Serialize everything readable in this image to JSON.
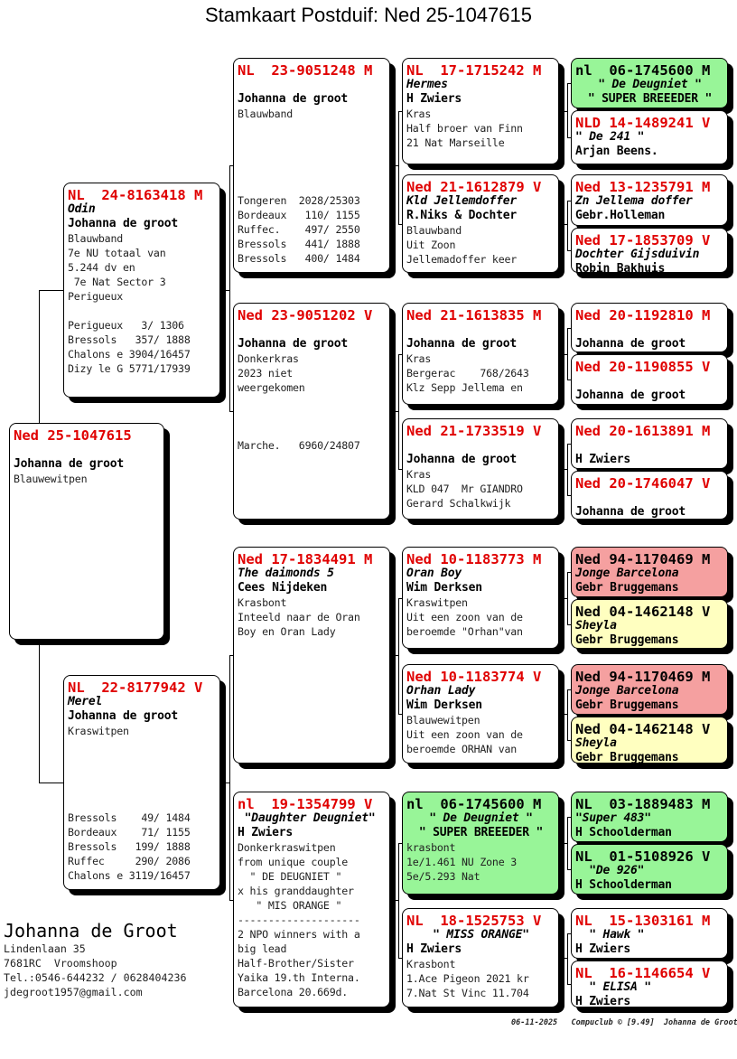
{
  "title": "Stamkaart Postduif: Ned 25-1047615",
  "colors": {
    "ring": "#e00000",
    "green": "#98f598",
    "red": "#f5a0a0",
    "yellow": "#ffffc0"
  },
  "cards": [
    {
      "lines": [
        {
          "s": "r",
          "t": "Ned 25-1047615"
        },
        {
          "s": "b",
          "t": ""
        },
        {
          "s": "o",
          "t": "Johanna de groot"
        },
        {
          "s": "t",
          "t": "Blauwewitpen"
        }
      ]
    },
    {
      "lines": [
        {
          "s": "r",
          "t": "NL  24-8163418 M"
        },
        {
          "s": "n",
          "t": "Odin"
        },
        {
          "s": "o",
          "t": "Johanna de groot"
        },
        {
          "s": "t",
          "t": "Blauwband"
        },
        {
          "s": "t",
          "t": "7e NU totaal van"
        },
        {
          "s": "t",
          "t": "5.244 dv en"
        },
        {
          "s": "t",
          "t": " 7e Nat Sector 3"
        },
        {
          "s": "t",
          "t": "Perigueux"
        },
        {
          "s": "b",
          "t": ""
        },
        {
          "s": "t",
          "t": "Perigueux   3/ 1306"
        },
        {
          "s": "t",
          "t": "Bressols   357/ 1888"
        },
        {
          "s": "t",
          "t": "Chalons e 3904/16457"
        },
        {
          "s": "t",
          "t": "Dizy le G 5771/17939"
        }
      ]
    },
    {
      "lines": [
        {
          "s": "r",
          "t": "NL  22-8177942 V"
        },
        {
          "s": "n",
          "t": "Merel"
        },
        {
          "s": "o",
          "t": "Johanna de groot"
        },
        {
          "s": "t",
          "t": "Kraswitpen"
        },
        {
          "s": "b",
          "t": ""
        },
        {
          "s": "b",
          "t": ""
        },
        {
          "s": "b",
          "t": ""
        },
        {
          "s": "b",
          "t": ""
        },
        {
          "s": "b",
          "t": ""
        },
        {
          "s": "t",
          "t": "Bressols    49/ 1484"
        },
        {
          "s": "t",
          "t": "Bordeaux    71/ 1155"
        },
        {
          "s": "t",
          "t": "Bressols   199/ 1888"
        },
        {
          "s": "t",
          "t": "Ruffec     290/ 2086"
        },
        {
          "s": "t",
          "t": "Chalons e 3119/16457"
        }
      ]
    },
    {
      "lines": [
        {
          "s": "r",
          "t": "NL  23-9051248 M"
        },
        {
          "s": "b",
          "t": ""
        },
        {
          "s": "o",
          "t": "Johanna de groot"
        },
        {
          "s": "t",
          "t": "Blauwband"
        },
        {
          "s": "b",
          "t": ""
        },
        {
          "s": "b",
          "t": ""
        },
        {
          "s": "b",
          "t": ""
        },
        {
          "s": "b",
          "t": ""
        },
        {
          "s": "b",
          "t": ""
        },
        {
          "s": "t",
          "t": "Tongeren  2028/25303"
        },
        {
          "s": "t",
          "t": "Bordeaux   110/ 1155"
        },
        {
          "s": "t",
          "t": "Ruffec.    497/ 2550"
        },
        {
          "s": "t",
          "t": "Bressols   441/ 1888"
        },
        {
          "s": "t",
          "t": "Bressols   400/ 1484"
        }
      ]
    },
    {
      "lines": [
        {
          "s": "r",
          "t": "Ned 23-9051202 V"
        },
        {
          "s": "b",
          "t": ""
        },
        {
          "s": "o",
          "t": "Johanna de groot"
        },
        {
          "s": "t",
          "t": "Donkerkras"
        },
        {
          "s": "t",
          "t": "2023 niet"
        },
        {
          "s": "t",
          "t": "weergekomen"
        },
        {
          "s": "b",
          "t": ""
        },
        {
          "s": "b",
          "t": ""
        },
        {
          "s": "b",
          "t": ""
        },
        {
          "s": "t",
          "t": "Marche.   6960/24807"
        }
      ]
    },
    {
      "lines": [
        {
          "s": "r",
          "t": "Ned 17-1834491 M"
        },
        {
          "s": "n",
          "t": "The daimonds 5"
        },
        {
          "s": "o",
          "t": "Cees Nijdeken"
        },
        {
          "s": "t",
          "t": "Krasbont"
        },
        {
          "s": "t",
          "t": "Inteeld naar de Oran"
        },
        {
          "s": "t",
          "t": "Boy en Oran Lady"
        }
      ]
    },
    {
      "lines": [
        {
          "s": "r",
          "t": "nl  19-1354799 V"
        },
        {
          "s": "n",
          "t": " \"Daughter Deugniet\""
        },
        {
          "s": "o",
          "t": "H Zwiers"
        },
        {
          "s": "t",
          "t": "Donkerkraswitpen"
        },
        {
          "s": "t",
          "t": "from unique couple"
        },
        {
          "s": "t",
          "t": "  \" DE DEUGNIET \""
        },
        {
          "s": "t",
          "t": "x his granddaughter"
        },
        {
          "s": "t",
          "t": "   \" MIS ORANGE \""
        },
        {
          "s": "t",
          "t": "--------------------"
        },
        {
          "s": "t",
          "t": "2 NPO winners with a"
        },
        {
          "s": "t",
          "t": "big lead"
        },
        {
          "s": "t",
          "t": "Half-Brother/Sister"
        },
        {
          "s": "t",
          "t": "Yaika 19.th Interna."
        },
        {
          "s": "t",
          "t": "Barcelona 20.669d."
        }
      ]
    },
    {
      "lines": [
        {
          "s": "r",
          "t": "NL  17-1715242 M"
        },
        {
          "s": "n",
          "t": "Hermes"
        },
        {
          "s": "o",
          "t": "H Zwiers"
        },
        {
          "s": "t",
          "t": "Kras"
        },
        {
          "s": "t",
          "t": "Half broer van Finn"
        },
        {
          "s": "t",
          "t": "21 Nat Marseille"
        }
      ]
    },
    {
      "lines": [
        {
          "s": "r",
          "t": "Ned 21-1612879 V"
        },
        {
          "s": "n",
          "t": "Kld Jellemdoffer"
        },
        {
          "s": "o",
          "t": "R.Niks & Dochter"
        },
        {
          "s": "t",
          "t": "Blauwband"
        },
        {
          "s": "t",
          "t": "Uit Zoon"
        },
        {
          "s": "t",
          "t": "Jellemadoffer keer"
        }
      ]
    },
    {
      "lines": [
        {
          "s": "r",
          "t": "Ned 21-1613835 M"
        },
        {
          "s": "b",
          "t": ""
        },
        {
          "s": "o",
          "t": "Johanna de groot"
        },
        {
          "s": "t",
          "t": "Kras"
        },
        {
          "s": "t",
          "t": "Bergerac    768/2643"
        },
        {
          "s": "t",
          "t": "Klz Sepp Jellema en"
        }
      ]
    },
    {
      "lines": [
        {
          "s": "r",
          "t": "Ned 21-1733519 V"
        },
        {
          "s": "b",
          "t": ""
        },
        {
          "s": "o",
          "t": "Johanna de groot"
        },
        {
          "s": "t",
          "t": "Kras"
        },
        {
          "s": "t",
          "t": "KLD 047  Mr GIANDRO"
        },
        {
          "s": "t",
          "t": "Gerard Schalkwijk"
        }
      ]
    },
    {
      "lines": [
        {
          "s": "r",
          "t": "Ned 10-1183773 M"
        },
        {
          "s": "n",
          "t": "Oran Boy"
        },
        {
          "s": "o",
          "t": "Wim Derksen"
        },
        {
          "s": "t",
          "t": "Kraswitpen"
        },
        {
          "s": "t",
          "t": "Uit een zoon van de"
        },
        {
          "s": "t",
          "t": "beroemde \"Orhan\"van"
        }
      ]
    },
    {
      "lines": [
        {
          "s": "r",
          "t": "Ned 10-1183774 V"
        },
        {
          "s": "n",
          "t": "Orhan Lady"
        },
        {
          "s": "o",
          "t": "Wim Derksen"
        },
        {
          "s": "t",
          "t": "Blauwewitpen"
        },
        {
          "s": "t",
          "t": "Uit een zoon van de"
        },
        {
          "s": "t",
          "t": "beroemde ORHAN van"
        }
      ]
    },
    {
      "bg": "green",
      "lines": [
        {
          "s": "r",
          "t": "nl  06-1745600 M"
        },
        {
          "s": "n",
          "c": true,
          "t": "\" De Deugniet \""
        },
        {
          "s": "o",
          "c": true,
          "t": "\" SUPER BREEEDER \""
        },
        {
          "s": "t",
          "t": "krasbont"
        },
        {
          "s": "t",
          "t": "1e/1.461 NU Zone 3"
        },
        {
          "s": "t",
          "t": "5e/5.293 Nat"
        }
      ]
    },
    {
      "lines": [
        {
          "s": "r",
          "t": "NL  18-1525753 V"
        },
        {
          "s": "n",
          "c": true,
          "t": "\" MISS ORANGE\""
        },
        {
          "s": "o",
          "t": "H Zwiers"
        },
        {
          "s": "t",
          "t": "Krasbont"
        },
        {
          "s": "t",
          "t": "1.Ace Pigeon 2021 kr"
        },
        {
          "s": "t",
          "t": "7.Nat St Vinc 11.704"
        }
      ]
    },
    {
      "bg": "green",
      "lines": [
        {
          "s": "r",
          "t": "nl  06-1745600 M"
        },
        {
          "s": "n",
          "c": true,
          "t": "\" De Deugniet \""
        },
        {
          "s": "o",
          "c": true,
          "t": "\" SUPER BREEEDER \""
        }
      ]
    },
    {
      "lines": [
        {
          "s": "r",
          "t": "NLD 14-1489241 V"
        },
        {
          "s": "n",
          "t": "\" De 241 \""
        },
        {
          "s": "o",
          "t": "Arjan Beens."
        }
      ]
    },
    {
      "lines": [
        {
          "s": "r",
          "t": "Ned 13-1235791 M"
        },
        {
          "s": "n",
          "t": "Zn Jellema doffer"
        },
        {
          "s": "o",
          "t": "Gebr.Holleman"
        }
      ]
    },
    {
      "lines": [
        {
          "s": "r",
          "t": "Ned 17-1853709 V"
        },
        {
          "s": "n",
          "t": "Dochter Gijsduivin"
        },
        {
          "s": "o",
          "t": "Robin Bakhuis"
        }
      ]
    },
    {
      "lines": [
        {
          "s": "r",
          "t": "Ned 20-1192810 M"
        },
        {
          "s": "b",
          "t": ""
        },
        {
          "s": "o",
          "t": "Johanna de groot"
        }
      ]
    },
    {
      "lines": [
        {
          "s": "r",
          "t": "Ned 20-1190855 V"
        },
        {
          "s": "b",
          "t": ""
        },
        {
          "s": "o",
          "t": "Johanna de groot"
        }
      ]
    },
    {
      "lines": [
        {
          "s": "r",
          "t": "Ned 20-1613891 M"
        },
        {
          "s": "b",
          "t": ""
        },
        {
          "s": "o",
          "t": "H Zwiers"
        }
      ]
    },
    {
      "lines": [
        {
          "s": "r",
          "t": "Ned 20-1746047 V"
        },
        {
          "s": "b",
          "t": ""
        },
        {
          "s": "o",
          "t": "Johanna de groot"
        }
      ]
    },
    {
      "bg": "red",
      "lines": [
        {
          "s": "r",
          "t": "Ned 94-1170469 M"
        },
        {
          "s": "n",
          "t": "Jonge Barcelona"
        },
        {
          "s": "o",
          "t": "Gebr Bruggemans"
        }
      ]
    },
    {
      "bg": "yellow",
      "lines": [
        {
          "s": "r",
          "t": "Ned 04-1462148 V"
        },
        {
          "s": "n",
          "t": "Sheyla"
        },
        {
          "s": "o",
          "t": "Gebr Bruggemans"
        }
      ]
    },
    {
      "bg": "red",
      "lines": [
        {
          "s": "r",
          "t": "Ned 94-1170469 M"
        },
        {
          "s": "n",
          "t": "Jonge Barcelona"
        },
        {
          "s": "o",
          "t": "Gebr Bruggemans"
        }
      ]
    },
    {
      "bg": "yellow",
      "lines": [
        {
          "s": "r",
          "t": "Ned 04-1462148 V"
        },
        {
          "s": "n",
          "t": "Sheyla"
        },
        {
          "s": "o",
          "t": "Gebr Bruggemans"
        }
      ]
    },
    {
      "bg": "green",
      "lines": [
        {
          "s": "r",
          "t": "NL  03-1889483 M"
        },
        {
          "s": "n",
          "t": "\"Super 483\""
        },
        {
          "s": "o",
          "t": "H Schoolderman"
        }
      ]
    },
    {
      "bg": "green",
      "lines": [
        {
          "s": "r",
          "t": "NL  01-5108926 V"
        },
        {
          "s": "n",
          "t": "  \"De 926\""
        },
        {
          "s": "o",
          "t": "H Schoolderman"
        }
      ]
    },
    {
      "lines": [
        {
          "s": "r",
          "t": "NL  15-1303161 M"
        },
        {
          "s": "n",
          "t": "  \" Hawk \""
        },
        {
          "s": "o",
          "t": "H Zwiers"
        }
      ]
    },
    {
      "lines": [
        {
          "s": "r",
          "t": "NL  16-1146654 V"
        },
        {
          "s": "n",
          "t": "  \" ELISA \""
        },
        {
          "s": "o",
          "t": "H Zwiers"
        }
      ]
    }
  ],
  "breeder": {
    "name": "Johanna de Groot",
    "address": "Lindenlaan 35",
    "city": "7681RC  Vroomshoop",
    "phone": "Tel.:0546-644232 / 0628404236",
    "email": "jdegroot1957@gmail.com"
  },
  "footer": "06-11-2025   Compuclub © [9.49]  Johanna de Groot"
}
